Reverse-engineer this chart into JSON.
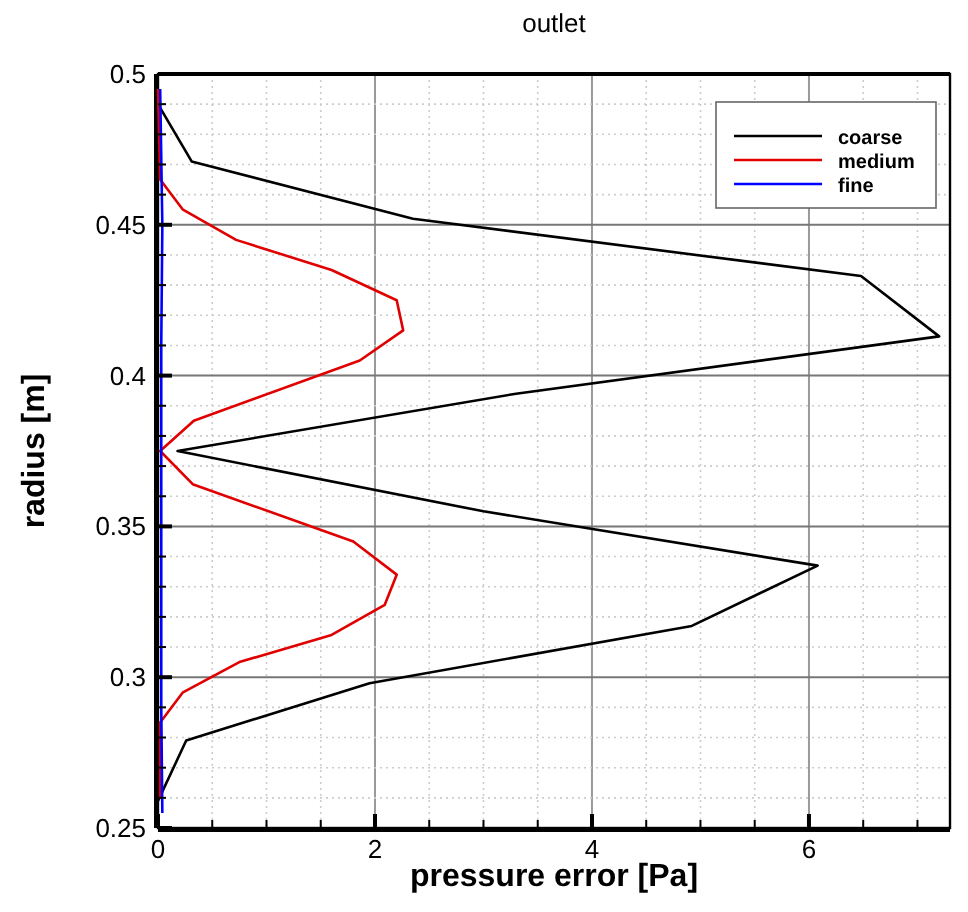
{
  "chart_data": {
    "type": "line",
    "title": "outlet",
    "xlabel": "pressure error [Pa]",
    "ylabel": "radius [m]",
    "xlim": [
      0,
      7.3
    ],
    "ylim": [
      0.25,
      0.5
    ],
    "xticks": [
      0,
      {
        "value": 0.5,
        "label": null
      },
      {
        "value": 1,
        "label": null
      },
      {
        "value": 1.5,
        "label": null
      },
      2,
      {
        "value": 2.5,
        "label": null
      },
      {
        "value": 3,
        "label": null
      },
      {
        "value": 3.5,
        "label": null
      },
      4,
      {
        "value": 4.5,
        "label": null
      },
      {
        "value": 5,
        "label": null
      },
      {
        "value": 5.5,
        "label": null
      },
      6,
      {
        "value": 6.5,
        "label": null
      },
      {
        "value": 7,
        "label": null
      }
    ],
    "yticks": [
      0.25,
      {
        "value": 0.26,
        "label": null
      },
      {
        "value": 0.27,
        "label": null
      },
      {
        "value": 0.28,
        "label": null
      },
      {
        "value": 0.29,
        "label": null
      },
      0.3,
      {
        "value": 0.31,
        "label": null
      },
      {
        "value": 0.32,
        "label": null
      },
      {
        "value": 0.33,
        "label": null
      },
      {
        "value": 0.34,
        "label": null
      },
      0.35,
      {
        "value": 0.36,
        "label": null
      },
      {
        "value": 0.37,
        "label": null
      },
      {
        "value": 0.38,
        "label": null
      },
      {
        "value": 0.39,
        "label": null
      },
      0.4,
      {
        "value": 0.41,
        "label": null
      },
      {
        "value": 0.42,
        "label": null
      },
      {
        "value": 0.43,
        "label": null
      },
      {
        "value": 0.44,
        "label": null
      },
      0.45,
      {
        "value": 0.46,
        "label": null
      },
      {
        "value": 0.47,
        "label": null
      },
      {
        "value": 0.48,
        "label": null
      },
      {
        "value": 0.49,
        "label": null
      },
      0.5
    ],
    "grid": true,
    "legend": "top right",
    "marker": "none",
    "line_style": "solid",
    "series": [
      {
        "name": "coarse",
        "color": "#000000",
        "x": [
          0,
          0.31,
          2.35,
          6.48,
          7.2,
          3.3,
          0.18,
          3.0,
          6.08,
          4.92,
          1.95,
          0.26,
          0
        ],
        "values": [
          0.49,
          0.471,
          0.452,
          0.433,
          0.413,
          0.394,
          0.375,
          0.355,
          0.337,
          0.317,
          0.298,
          0.279,
          0.259
        ]
      },
      {
        "name": "medium",
        "color": "#e00000",
        "x": [
          0,
          0.02,
          0.23,
          0.72,
          1.6,
          2.2,
          2.26,
          1.86,
          0.33,
          0.02,
          0.32,
          1.8,
          2.2,
          2.09,
          1.6,
          0.75,
          0.23,
          0.02,
          0.02
        ],
        "values": [
          0.495,
          0.465,
          0.455,
          0.445,
          0.435,
          0.425,
          0.415,
          0.405,
          0.385,
          0.375,
          0.364,
          0.345,
          0.334,
          0.324,
          0.314,
          0.305,
          0.295,
          0.285,
          0.26
        ]
      },
      {
        "name": "fine",
        "color": "#0000ff",
        "x": [
          0.02,
          0.04,
          0.03,
          0.03,
          0.03,
          0.03,
          0.04
        ],
        "values": [
          0.495,
          0.45,
          0.41,
          0.375,
          0.335,
          0.29,
          0.255
        ]
      }
    ]
  }
}
